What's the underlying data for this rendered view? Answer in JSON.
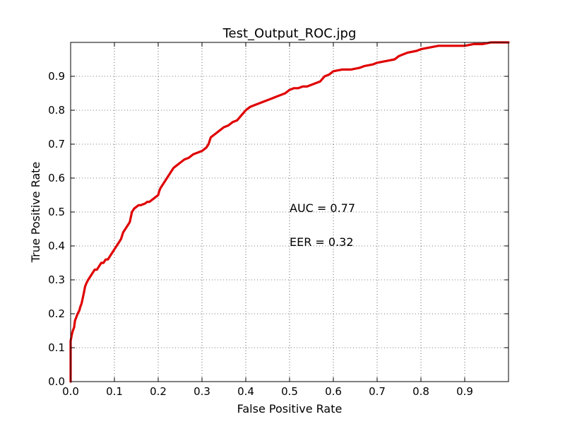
{
  "chart_data": {
    "type": "line",
    "title": "Test_Output_ROC.jpg",
    "xlabel": "False Positive Rate",
    "ylabel": "True Positive Rate",
    "xlim": [
      0,
      1
    ],
    "ylim": [
      0,
      1
    ],
    "xticks": [
      "0.0",
      "0.1",
      "0.2",
      "0.3",
      "0.4",
      "0.5",
      "0.6",
      "0.7",
      "0.8",
      "0.9"
    ],
    "yticks": [
      "0.0",
      "0.1",
      "0.2",
      "0.3",
      "0.4",
      "0.5",
      "0.6",
      "0.7",
      "0.8",
      "0.9"
    ],
    "grid": true,
    "series": [
      {
        "color": "#e00000",
        "x": [
          0,
          0,
          0.003,
          0.005,
          0.008,
          0.01,
          0.013,
          0.016,
          0.02,
          0.022,
          0.025,
          0.03,
          0.033,
          0.036,
          0.04,
          0.045,
          0.05,
          0.055,
          0.06,
          0.065,
          0.07,
          0.075,
          0.08,
          0.085,
          0.09,
          0.095,
          0.1,
          0.105,
          0.11,
          0.115,
          0.12,
          0.125,
          0.13,
          0.135,
          0.14,
          0.145,
          0.15,
          0.155,
          0.16,
          0.17,
          0.175,
          0.18,
          0.19,
          0.2,
          0.202,
          0.205,
          0.21,
          0.215,
          0.22,
          0.225,
          0.23,
          0.235,
          0.24,
          0.245,
          0.25,
          0.255,
          0.26,
          0.27,
          0.28,
          0.29,
          0.3,
          0.31,
          0.315,
          0.32,
          0.33,
          0.34,
          0.35,
          0.36,
          0.37,
          0.38,
          0.39,
          0.4,
          0.41,
          0.42,
          0.43,
          0.44,
          0.45,
          0.46,
          0.47,
          0.48,
          0.49,
          0.5,
          0.51,
          0.52,
          0.53,
          0.54,
          0.55,
          0.56,
          0.57,
          0.58,
          0.59,
          0.6,
          0.62,
          0.64,
          0.66,
          0.67,
          0.69,
          0.7,
          0.72,
          0.74,
          0.75,
          0.77,
          0.79,
          0.8,
          0.82,
          0.84,
          0.86,
          0.88,
          0.9,
          0.92,
          0.94,
          0.96,
          0.97,
          1.0
        ],
        "y": [
          0,
          0.12,
          0.14,
          0.15,
          0.16,
          0.18,
          0.19,
          0.2,
          0.21,
          0.22,
          0.23,
          0.26,
          0.28,
          0.29,
          0.3,
          0.31,
          0.32,
          0.33,
          0.33,
          0.34,
          0.35,
          0.35,
          0.36,
          0.36,
          0.37,
          0.38,
          0.39,
          0.4,
          0.41,
          0.42,
          0.44,
          0.45,
          0.46,
          0.47,
          0.5,
          0.51,
          0.515,
          0.52,
          0.52,
          0.525,
          0.53,
          0.53,
          0.54,
          0.55,
          0.56,
          0.57,
          0.58,
          0.59,
          0.6,
          0.61,
          0.62,
          0.63,
          0.635,
          0.64,
          0.645,
          0.65,
          0.655,
          0.66,
          0.67,
          0.675,
          0.68,
          0.69,
          0.7,
          0.72,
          0.73,
          0.74,
          0.75,
          0.755,
          0.765,
          0.77,
          0.785,
          0.8,
          0.81,
          0.815,
          0.82,
          0.825,
          0.83,
          0.835,
          0.84,
          0.845,
          0.85,
          0.86,
          0.865,
          0.865,
          0.87,
          0.87,
          0.875,
          0.88,
          0.885,
          0.9,
          0.905,
          0.915,
          0.92,
          0.92,
          0.925,
          0.93,
          0.935,
          0.94,
          0.945,
          0.95,
          0.96,
          0.97,
          0.975,
          0.98,
          0.985,
          0.99,
          0.99,
          0.99,
          0.99,
          0.995,
          0.995,
          1.0,
          1.0,
          1.0
        ]
      }
    ],
    "annotations": [
      {
        "text": "AUC = 0.77",
        "x": 0.5,
        "y": 0.5
      },
      {
        "text": "EER = 0.32",
        "x": 0.5,
        "y": 0.4
      }
    ]
  }
}
